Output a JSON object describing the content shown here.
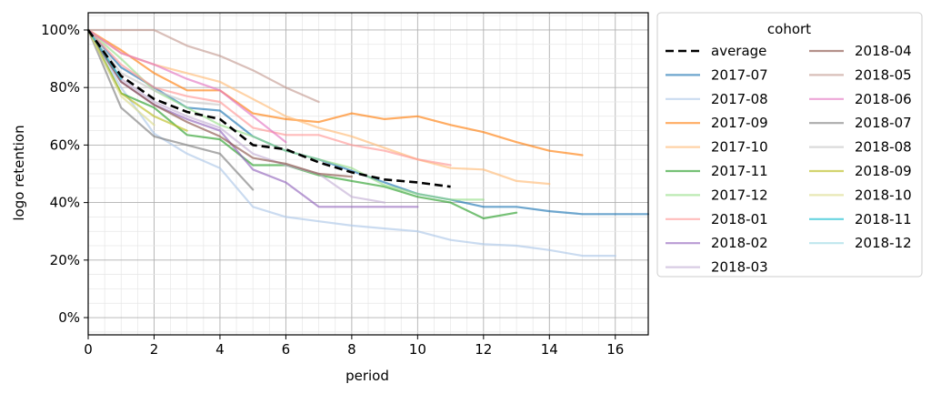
{
  "chart_data": {
    "type": "line",
    "title": "",
    "xlabel": "period",
    "ylabel": "logo retention",
    "xlim": [
      0,
      17
    ],
    "ylim": [
      -0.06,
      1.06
    ],
    "xticks": [
      0,
      2,
      4,
      6,
      8,
      10,
      12,
      14,
      16
    ],
    "xtick_labels": [
      "0",
      "2",
      "4",
      "6",
      "8",
      "10",
      "12",
      "14",
      "16"
    ],
    "yticks": [
      0,
      0.2,
      0.4,
      0.6,
      0.8,
      1.0
    ],
    "ytick_labels": [
      "0%",
      "20%",
      "40%",
      "60%",
      "80%",
      "100%"
    ],
    "grid": "major and minor",
    "legend": {
      "title": "cohort",
      "placement": "outside right",
      "columns": 2
    },
    "series": [
      {
        "name": "average",
        "color": "#000000",
        "dashed": true,
        "x": [
          0,
          1,
          2,
          3,
          4,
          5,
          6,
          7,
          8,
          9,
          10,
          11
        ],
        "y": [
          1.0,
          0.84,
          0.76,
          0.715,
          0.69,
          0.6,
          0.585,
          0.54,
          0.505,
          0.48,
          0.47,
          0.455
        ]
      },
      {
        "name": "2017-07",
        "color": "#1f77b4",
        "x": [
          0,
          1,
          2,
          3,
          4,
          5,
          6,
          7,
          8,
          9,
          10,
          11,
          12,
          13,
          14,
          15,
          16,
          17
        ],
        "y": [
          1.0,
          0.87,
          0.8,
          0.73,
          0.72,
          0.63,
          0.58,
          0.55,
          0.51,
          0.47,
          0.43,
          0.41,
          0.385,
          0.385,
          0.37,
          0.36,
          0.36,
          0.36
        ]
      },
      {
        "name": "2017-08",
        "color": "#aec7e8",
        "x": [
          0,
          1,
          2,
          3,
          4,
          5,
          6,
          7,
          8,
          9,
          10,
          11,
          12,
          13,
          14,
          15,
          16
        ],
        "y": [
          1.0,
          0.8,
          0.64,
          0.57,
          0.52,
          0.385,
          0.35,
          0.335,
          0.32,
          0.31,
          0.3,
          0.27,
          0.255,
          0.25,
          0.235,
          0.215,
          0.215
        ]
      },
      {
        "name": "2017-09",
        "color": "#ff7f0e",
        "x": [
          0,
          1,
          2,
          3,
          4,
          5,
          6,
          7,
          8,
          9,
          10,
          11,
          12,
          13,
          14,
          15
        ],
        "y": [
          1.0,
          0.93,
          0.85,
          0.79,
          0.79,
          0.71,
          0.69,
          0.68,
          0.71,
          0.69,
          0.7,
          0.67,
          0.645,
          0.61,
          0.58,
          0.565
        ]
      },
      {
        "name": "2017-10",
        "color": "#ffbb78",
        "x": [
          0,
          1,
          2,
          3,
          4,
          5,
          6,
          7,
          8,
          9,
          10,
          11,
          12,
          13,
          14
        ],
        "y": [
          1.0,
          0.92,
          0.88,
          0.85,
          0.82,
          0.76,
          0.7,
          0.66,
          0.63,
          0.59,
          0.55,
          0.52,
          0.515,
          0.475,
          0.465
        ]
      },
      {
        "name": "2017-11",
        "color": "#2ca02c",
        "x": [
          0,
          1,
          2,
          3,
          4,
          5,
          6,
          7,
          8,
          9,
          10,
          11,
          12,
          13
        ],
        "y": [
          1.0,
          0.78,
          0.73,
          0.635,
          0.62,
          0.53,
          0.53,
          0.495,
          0.475,
          0.455,
          0.42,
          0.4,
          0.345,
          0.365
        ]
      },
      {
        "name": "2017-12",
        "color": "#98df8a",
        "x": [
          0,
          1,
          2,
          3,
          4,
          5,
          6,
          7,
          8,
          9,
          10,
          11,
          12
        ],
        "y": [
          1.0,
          0.9,
          0.79,
          0.73,
          0.67,
          0.63,
          0.58,
          0.55,
          0.52,
          0.46,
          0.43,
          0.41,
          0.41
        ]
      },
      {
        "name": "2018-01",
        "color": "#ff9896",
        "x": [
          0,
          1,
          2,
          3,
          4,
          5,
          6,
          7,
          8,
          9,
          10,
          11
        ],
        "y": [
          1.0,
          0.88,
          0.8,
          0.77,
          0.75,
          0.66,
          0.635,
          0.635,
          0.6,
          0.58,
          0.55,
          0.53
        ]
      },
      {
        "name": "2018-02",
        "color": "#9467bd",
        "x": [
          0,
          1,
          2,
          3,
          4,
          5,
          6,
          7,
          8,
          9,
          10
        ],
        "y": [
          1.0,
          0.82,
          0.74,
          0.69,
          0.65,
          0.515,
          0.47,
          0.385,
          0.385,
          0.385,
          0.385
        ]
      },
      {
        "name": "2018-03",
        "color": "#c5b0d5",
        "x": [
          0,
          1,
          2,
          3,
          4,
          5,
          6,
          7,
          8,
          9
        ],
        "y": [
          1.0,
          0.83,
          0.75,
          0.7,
          0.66,
          0.57,
          0.53,
          0.5,
          0.42,
          0.4
        ]
      },
      {
        "name": "2018-04",
        "color": "#8c564b",
        "x": [
          0,
          1,
          2,
          3,
          4,
          5,
          6,
          7,
          8
        ],
        "y": [
          1.0,
          0.82,
          0.74,
          0.68,
          0.63,
          0.555,
          0.535,
          0.5,
          0.49
        ]
      },
      {
        "name": "2018-05",
        "color": "#c49c94",
        "x": [
          0,
          1,
          2,
          3,
          4,
          5,
          6,
          7
        ],
        "y": [
          1.0,
          1.0,
          1.0,
          0.945,
          0.91,
          0.86,
          0.8,
          0.75
        ]
      },
      {
        "name": "2018-06",
        "color": "#e377c2",
        "x": [
          0,
          1,
          2,
          3,
          4,
          5,
          6
        ],
        "y": [
          1.0,
          0.92,
          0.88,
          0.83,
          0.79,
          0.7,
          0.61
        ]
      },
      {
        "name": "2018-07",
        "color": "#7f7f7f",
        "x": [
          0,
          1,
          2,
          3,
          4,
          5
        ],
        "y": [
          1.0,
          0.73,
          0.63,
          0.6,
          0.57,
          0.445
        ]
      },
      {
        "name": "2018-08",
        "color": "#c7c7c7",
        "x": [
          0,
          1,
          2,
          3,
          4
        ],
        "y": [
          1.0,
          0.85,
          0.79,
          0.75,
          0.74
        ]
      },
      {
        "name": "2018-09",
        "color": "#bcbd22",
        "x": [
          0,
          1,
          2,
          3
        ],
        "y": [
          1.0,
          0.78,
          0.7,
          0.65
        ]
      },
      {
        "name": "2018-10",
        "color": "#dbdb8d",
        "x": [
          0,
          1,
          2
        ],
        "y": [
          1.0,
          0.77,
          0.67
        ]
      },
      {
        "name": "2018-11",
        "color": "#17becf",
        "x": [
          0,
          1
        ],
        "y": [
          1.0,
          0.83
        ]
      },
      {
        "name": "2018-12",
        "color": "#9edae5",
        "x": [
          0
        ],
        "y": [
          1.0
        ]
      }
    ]
  }
}
